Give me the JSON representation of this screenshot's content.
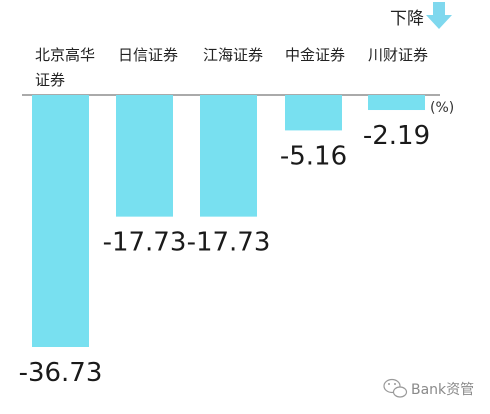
{
  "chart_data": {
    "type": "bar",
    "categories": [
      "北京高华证券",
      "日信证券",
      "江海证券",
      "中金证券",
      "川财证券"
    ],
    "values": [
      -36.73,
      -17.73,
      -17.73,
      -5.16,
      -2.19
    ],
    "value_labels": [
      "-36.73",
      "-17.73",
      "-17.73",
      "-5.16",
      "-2.19"
    ],
    "unit": "(%)",
    "legend": "下降",
    "ylim": [
      -40,
      0
    ],
    "grid": false,
    "legend_position": "top-right"
  },
  "colors": {
    "bar": "#78e0f0",
    "axis": "#555555",
    "arrow": "#7fd8ee"
  },
  "icons": {
    "legend": "down-arrow-icon",
    "watermark": "wechat-icon"
  },
  "watermark": {
    "text": "Bank资管"
  }
}
